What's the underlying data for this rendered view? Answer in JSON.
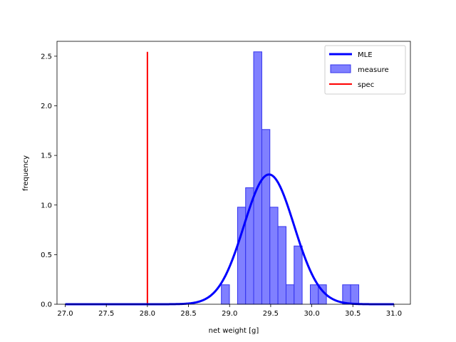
{
  "chart_data": {
    "type": "bar",
    "xlabel": "net weight [g]",
    "ylabel": "frequency",
    "xlim": [
      26.9,
      31.2
    ],
    "ylim": [
      0,
      2.65
    ],
    "xticks": [
      "27.0",
      "27.5",
      "28.0",
      "28.5",
      "29.0",
      "29.5",
      "30.0",
      "30.5",
      "31.0"
    ],
    "yticks": [
      "0.0",
      "0.5",
      "1.0",
      "1.5",
      "2.0",
      "2.5"
    ],
    "legend": {
      "position": "top-right",
      "entries": [
        "MLE",
        "measure",
        "spec"
      ]
    },
    "colors": {
      "mle": "#0000ff",
      "measure_fill": "#8080ff",
      "measure_edge": "#3333ee",
      "spec": "#ff0000"
    },
    "histogram": {
      "name": "measure",
      "bin_width": 0.0983,
      "bin_edges": [
        28.9,
        28.998,
        29.097,
        29.195,
        29.293,
        29.392,
        29.49,
        29.588,
        29.687,
        29.785,
        29.883,
        29.982,
        30.08,
        30.178,
        30.277,
        30.375,
        30.473,
        30.572
      ],
      "values": [
        0.196,
        0,
        0.978,
        1.174,
        2.544,
        1.761,
        0.978,
        0.783,
        0.196,
        0.587,
        0,
        0.196,
        0.196,
        0,
        0,
        0.196,
        0.196
      ]
    },
    "mle": {
      "name": "MLE",
      "distribution": "normal",
      "mean": 29.48,
      "std": 0.305,
      "x_range": [
        27.0,
        31.0
      ]
    },
    "spec": {
      "name": "spec",
      "x": 28.0,
      "y_range": [
        0,
        2.544
      ]
    }
  }
}
